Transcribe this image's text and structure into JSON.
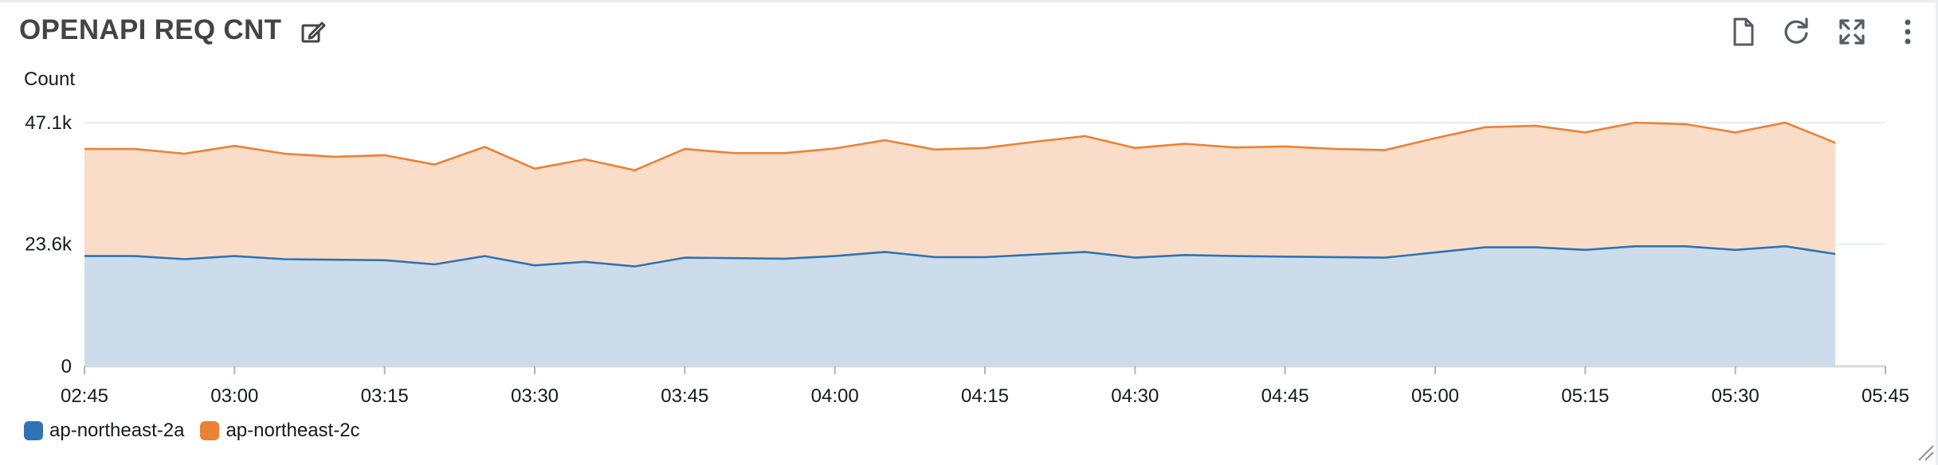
{
  "widget": {
    "title": "OPENAPI REQ CNT",
    "icons": {
      "edit": "edit-icon",
      "export": "document-icon",
      "refresh": "refresh-icon",
      "expand": "expand-icon",
      "menu": "more-vertical-icon"
    }
  },
  "chart_data": {
    "type": "area",
    "stacked": true,
    "ylabel": "Count",
    "xlabel": "",
    "x": [
      "02:45",
      "02:50",
      "02:55",
      "03:00",
      "03:05",
      "03:10",
      "03:15",
      "03:20",
      "03:25",
      "03:30",
      "03:35",
      "03:40",
      "03:45",
      "03:50",
      "03:55",
      "04:00",
      "04:05",
      "04:10",
      "04:15",
      "04:20",
      "04:25",
      "04:30",
      "04:35",
      "04:40",
      "04:45",
      "04:50",
      "04:55",
      "05:00",
      "05:05",
      "05:10",
      "05:15",
      "05:20",
      "05:25",
      "05:30",
      "05:35",
      "05:40"
    ],
    "x_ticks": [
      "02:45",
      "03:00",
      "03:15",
      "03:30",
      "03:45",
      "04:00",
      "04:15",
      "04:30",
      "04:45",
      "05:00",
      "05:15",
      "05:30",
      "05:45"
    ],
    "x_range": [
      "02:45",
      "05:45"
    ],
    "y_ticks": [
      {
        "value": 0,
        "label": "0"
      },
      {
        "value": 23600,
        "label": "23.6k"
      },
      {
        "value": 47100,
        "label": "47.1k"
      }
    ],
    "ylim": [
      0,
      47100
    ],
    "grid": "horizontal",
    "legend_position": "bottom-left",
    "series": [
      {
        "name": "ap-northeast-2a",
        "color": "#3073b5",
        "fill": "#ccdcea",
        "values": [
          21300,
          21300,
          20700,
          21300,
          20700,
          20600,
          20500,
          19700,
          21300,
          19500,
          20200,
          19300,
          21000,
          20900,
          20800,
          21300,
          22100,
          21100,
          21100,
          21600,
          22100,
          21000,
          21500,
          21300,
          21200,
          21100,
          21000,
          22000,
          23000,
          23000,
          22500,
          23200,
          23200,
          22500,
          23200,
          21700
        ]
      },
      {
        "name": "ap-northeast-2c",
        "color": "#eb8236",
        "fill": "#f9ddc8",
        "values": [
          20700,
          20700,
          20400,
          21300,
          20400,
          19900,
          20300,
          19300,
          21100,
          18700,
          19800,
          18600,
          21000,
          20300,
          20400,
          20800,
          21600,
          20800,
          21100,
          21800,
          22400,
          21200,
          21500,
          21000,
          21300,
          20900,
          20800,
          22100,
          23200,
          23500,
          22700,
          23900,
          23600,
          22700,
          23900,
          21500
        ]
      }
    ]
  }
}
